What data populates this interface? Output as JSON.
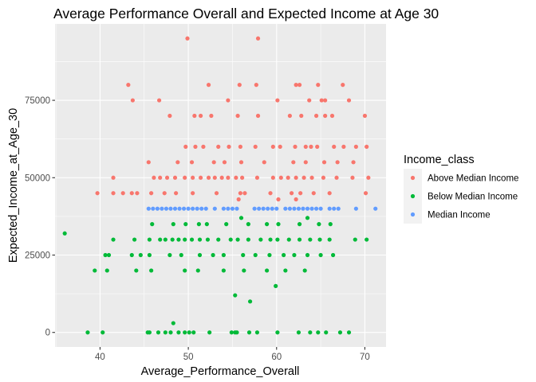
{
  "chart_data": {
    "type": "scatter",
    "title": "Average Performance Overall and Expected Income at Age 30",
    "xlabel": "Average_Performance_Overall",
    "ylabel": "Expected_Income_at_Age_30",
    "xlim": [
      34.9,
      72.4
    ],
    "ylim": [
      -4700,
      99700
    ],
    "x_ticks": [
      40,
      50,
      60,
      70
    ],
    "x_tick_labels": [
      "40",
      "50",
      "60",
      "70"
    ],
    "y_ticks": [
      0,
      25000,
      50000,
      75000
    ],
    "y_tick_labels": [
      "0",
      "25000",
      "50000",
      "75000"
    ],
    "grid": true,
    "legend": {
      "title": "Income_class",
      "placement": "right",
      "entries": [
        "Above Median Income",
        "Below Median Income",
        "Median Income"
      ]
    },
    "series": [
      {
        "name": "Above Median Income",
        "color": "#F8766D",
        "points": [
          [
            49.9,
            95000
          ],
          [
            57.9,
            95000
          ],
          [
            43.2,
            80000
          ],
          [
            52.3,
            80000
          ],
          [
            55.8,
            80000
          ],
          [
            57.7,
            80000
          ],
          [
            62.2,
            80000
          ],
          [
            62.6,
            80000
          ],
          [
            64.7,
            80000
          ],
          [
            67.5,
            80000
          ],
          [
            43.7,
            75000
          ],
          [
            46.7,
            75000
          ],
          [
            54.5,
            75000
          ],
          [
            60.1,
            75000
          ],
          [
            63.7,
            75000
          ],
          [
            65.1,
            75000
          ],
          [
            65.5,
            75000
          ],
          [
            68.2,
            75000
          ],
          [
            47.9,
            70000
          ],
          [
            50.7,
            70000
          ],
          [
            51.4,
            70000
          ],
          [
            52.6,
            70000
          ],
          [
            55.6,
            70000
          ],
          [
            57.9,
            70000
          ],
          [
            61.5,
            70000
          ],
          [
            62.8,
            70000
          ],
          [
            64.5,
            70000
          ],
          [
            65.5,
            70000
          ],
          [
            66.3,
            70000
          ],
          [
            70.0,
            70000
          ],
          [
            49.7,
            60000
          ],
          [
            50.8,
            60000
          ],
          [
            51.7,
            60000
          ],
          [
            53.4,
            60000
          ],
          [
            54.6,
            60000
          ],
          [
            55.9,
            60000
          ],
          [
            57.6,
            60000
          ],
          [
            59.6,
            60000
          ],
          [
            60.4,
            60000
          ],
          [
            62.1,
            60000
          ],
          [
            63.3,
            60000
          ],
          [
            63.9,
            60000
          ],
          [
            64.6,
            60000
          ],
          [
            66.5,
            60000
          ],
          [
            67.6,
            60000
          ],
          [
            69.0,
            60000
          ],
          [
            70.2,
            60000
          ],
          [
            45.5,
            55000
          ],
          [
            48.8,
            55000
          ],
          [
            50.4,
            55000
          ],
          [
            52.9,
            55000
          ],
          [
            54.1,
            55000
          ],
          [
            56.0,
            55000
          ],
          [
            58.6,
            55000
          ],
          [
            61.9,
            55000
          ],
          [
            63.3,
            55000
          ],
          [
            65.4,
            55000
          ],
          [
            66.9,
            55000
          ],
          [
            68.7,
            55000
          ],
          [
            41.5,
            50000
          ],
          [
            46.1,
            50000
          ],
          [
            46.8,
            50000
          ],
          [
            47.6,
            50000
          ],
          [
            48.5,
            50000
          ],
          [
            49.6,
            50000
          ],
          [
            50.5,
            50000
          ],
          [
            51.4,
            50000
          ],
          [
            52.3,
            50000
          ],
          [
            53.0,
            50000
          ],
          [
            53.8,
            50000
          ],
          [
            54.5,
            50000
          ],
          [
            55.4,
            50000
          ],
          [
            56.1,
            50000
          ],
          [
            57.8,
            50000
          ],
          [
            59.6,
            50000
          ],
          [
            60.5,
            50000
          ],
          [
            61.3,
            50000
          ],
          [
            62.2,
            50000
          ],
          [
            63.1,
            50000
          ],
          [
            64.0,
            50000
          ],
          [
            65.3,
            50000
          ],
          [
            66.8,
            50000
          ],
          [
            68.6,
            50000
          ],
          [
            70.4,
            50000
          ],
          [
            39.7,
            45000
          ],
          [
            41.5,
            45000
          ],
          [
            42.6,
            45000
          ],
          [
            43.6,
            45000
          ],
          [
            44.2,
            45000
          ],
          [
            45.8,
            45000
          ],
          [
            47.3,
            45000
          ],
          [
            48.6,
            45000
          ],
          [
            50.5,
            45000
          ],
          [
            53.2,
            45000
          ],
          [
            55.9,
            45000
          ],
          [
            56.4,
            45000
          ],
          [
            59.3,
            45000
          ],
          [
            61.7,
            45000
          ],
          [
            62.7,
            45000
          ],
          [
            64.2,
            45000
          ],
          [
            66.0,
            45000
          ],
          [
            70.1,
            45000
          ],
          [
            55.7,
            43000
          ],
          [
            60.2,
            43000
          ],
          [
            62.2,
            43000
          ]
        ]
      },
      {
        "name": "Below Median Income",
        "color": "#00BA38",
        "points": [
          [
            36.0,
            32000
          ],
          [
            56.0,
            37000
          ],
          [
            63.5,
            37000
          ],
          [
            41.5,
            30000
          ],
          [
            43.9,
            30000
          ],
          [
            45.6,
            30000
          ],
          [
            46.8,
            30000
          ],
          [
            47.4,
            30000
          ],
          [
            48.2,
            30000
          ],
          [
            48.9,
            30000
          ],
          [
            49.6,
            30000
          ],
          [
            50.4,
            30000
          ],
          [
            51.3,
            30000
          ],
          [
            52.2,
            30000
          ],
          [
            53.4,
            30000
          ],
          [
            54.8,
            30000
          ],
          [
            55.6,
            30000
          ],
          [
            56.8,
            30000
          ],
          [
            58.2,
            30000
          ],
          [
            59.3,
            30000
          ],
          [
            60.1,
            30000
          ],
          [
            61.4,
            30000
          ],
          [
            62.6,
            30000
          ],
          [
            63.8,
            30000
          ],
          [
            64.9,
            30000
          ],
          [
            66.0,
            30000
          ],
          [
            68.9,
            30000
          ],
          [
            70.2,
            30000
          ],
          [
            45.9,
            35000
          ],
          [
            48.3,
            35000
          ],
          [
            49.7,
            35000
          ],
          [
            51.2,
            35000
          ],
          [
            52.1,
            35000
          ],
          [
            54.3,
            35000
          ],
          [
            56.8,
            35000
          ],
          [
            58.9,
            35000
          ],
          [
            60.2,
            35000
          ],
          [
            62.6,
            35000
          ],
          [
            64.8,
            35000
          ],
          [
            66.1,
            35000
          ],
          [
            40.6,
            25000
          ],
          [
            41.0,
            25000
          ],
          [
            43.6,
            25000
          ],
          [
            44.6,
            25000
          ],
          [
            45.6,
            25000
          ],
          [
            47.9,
            25000
          ],
          [
            49.2,
            25000
          ],
          [
            51.3,
            25000
          ],
          [
            52.8,
            25000
          ],
          [
            54.0,
            25000
          ],
          [
            56.2,
            25000
          ],
          [
            57.6,
            25000
          ],
          [
            59.2,
            25000
          ],
          [
            60.8,
            25000
          ],
          [
            62.0,
            25000
          ],
          [
            63.5,
            25000
          ],
          [
            65.0,
            25000
          ],
          [
            66.4,
            25000
          ],
          [
            39.4,
            20000
          ],
          [
            40.8,
            20000
          ],
          [
            44.1,
            20000
          ],
          [
            45.8,
            20000
          ],
          [
            49.6,
            20000
          ],
          [
            51.1,
            20000
          ],
          [
            54.0,
            20000
          ],
          [
            56.3,
            20000
          ],
          [
            58.9,
            20000
          ],
          [
            61.0,
            20000
          ],
          [
            63.2,
            20000
          ],
          [
            59.9,
            15000
          ],
          [
            55.3,
            12000
          ],
          [
            57.0,
            10000
          ],
          [
            48.3,
            3000
          ],
          [
            38.6,
            0
          ],
          [
            40.3,
            0
          ],
          [
            45.4,
            0
          ],
          [
            45.6,
            0
          ],
          [
            46.6,
            0
          ],
          [
            47.4,
            0
          ],
          [
            48.0,
            0
          ],
          [
            48.9,
            0
          ],
          [
            49.6,
            0
          ],
          [
            50.1,
            0
          ],
          [
            50.6,
            0
          ],
          [
            52.4,
            0
          ],
          [
            54.9,
            0
          ],
          [
            55.3,
            0
          ],
          [
            55.5,
            0
          ],
          [
            56.9,
            0
          ],
          [
            57.8,
            0
          ],
          [
            60.1,
            0
          ],
          [
            62.5,
            0
          ],
          [
            63.8,
            0
          ],
          [
            64.7,
            0
          ],
          [
            65.6,
            0
          ],
          [
            67.2,
            0
          ],
          [
            68.2,
            0
          ]
        ]
      },
      {
        "name": "Median Income",
        "color": "#619CFF",
        "points": [
          [
            45.5,
            40000
          ],
          [
            46.0,
            40000
          ],
          [
            46.5,
            40000
          ],
          [
            47.0,
            40000
          ],
          [
            47.5,
            40000
          ],
          [
            48.0,
            40000
          ],
          [
            48.5,
            40000
          ],
          [
            49.0,
            40000
          ],
          [
            49.5,
            40000
          ],
          [
            50.0,
            40000
          ],
          [
            50.5,
            40000
          ],
          [
            51.0,
            40000
          ],
          [
            51.5,
            40000
          ],
          [
            52.0,
            40000
          ],
          [
            53.0,
            40000
          ],
          [
            54.0,
            40000
          ],
          [
            54.5,
            40000
          ],
          [
            55.0,
            40000
          ],
          [
            55.5,
            40000
          ],
          [
            57.5,
            40000
          ],
          [
            58.0,
            40000
          ],
          [
            58.5,
            40000
          ],
          [
            59.0,
            40000
          ],
          [
            59.5,
            40000
          ],
          [
            60.0,
            40000
          ],
          [
            61.0,
            40000
          ],
          [
            61.5,
            40000
          ],
          [
            62.0,
            40000
          ],
          [
            62.5,
            40000
          ],
          [
            63.0,
            40000
          ],
          [
            63.5,
            40000
          ],
          [
            64.0,
            40000
          ],
          [
            64.5,
            40000
          ],
          [
            65.0,
            40000
          ],
          [
            66.0,
            40000
          ],
          [
            66.5,
            40000
          ],
          [
            67.0,
            40000
          ],
          [
            69.0,
            40000
          ],
          [
            71.2,
            40000
          ]
        ]
      }
    ]
  }
}
